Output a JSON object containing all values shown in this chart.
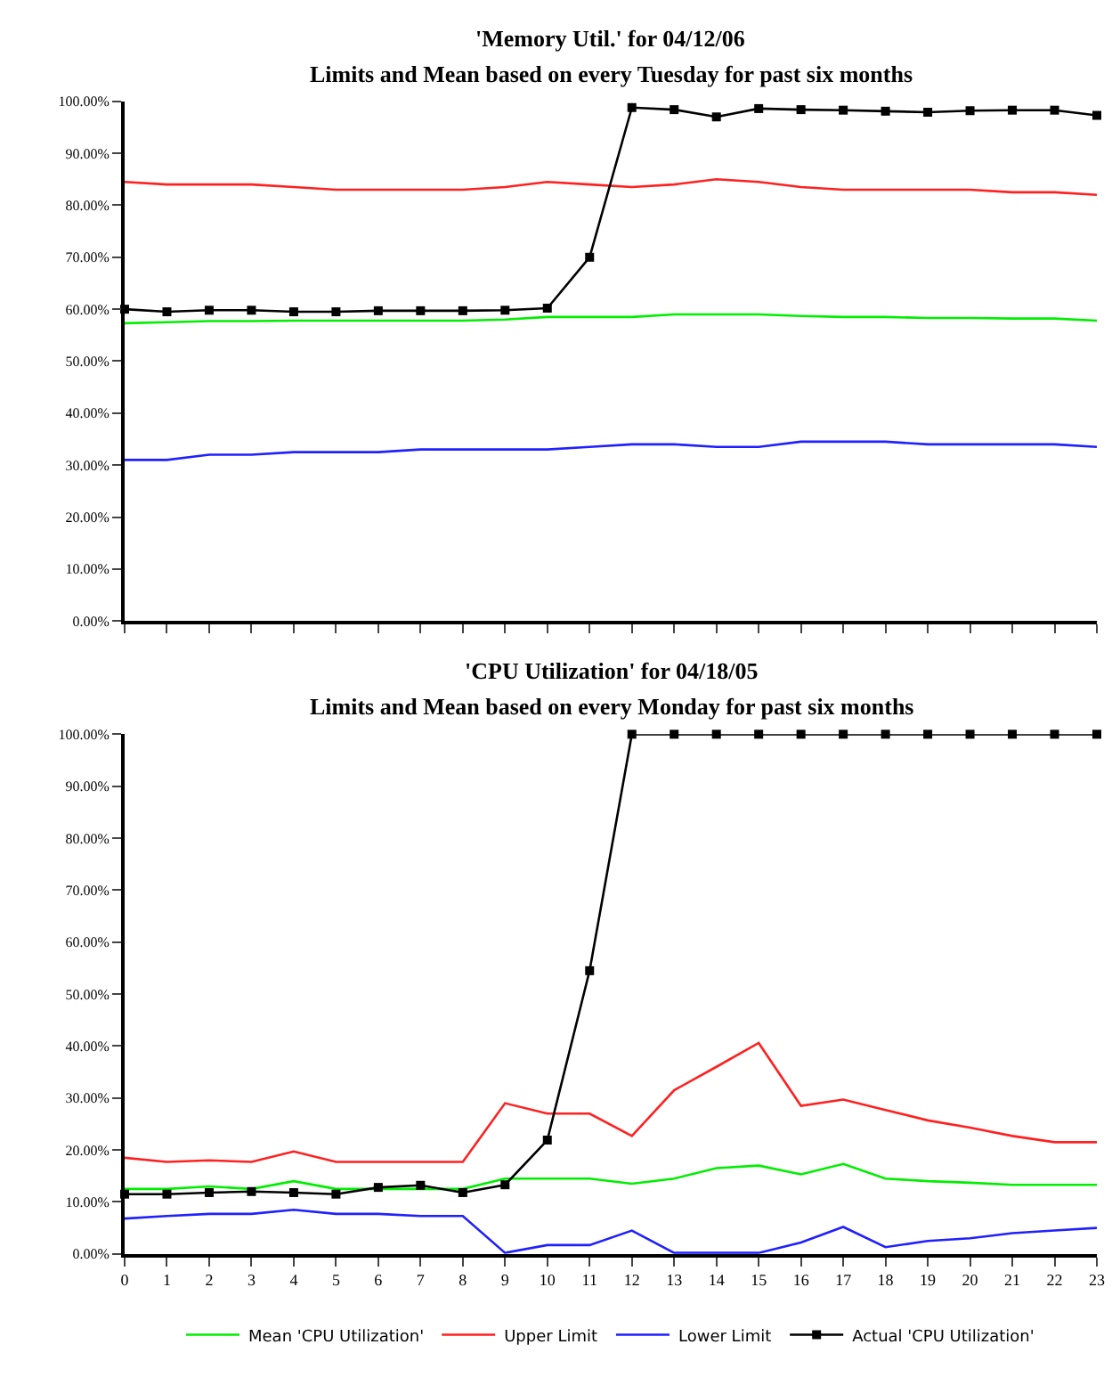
{
  "chart_data": [
    {
      "type": "line",
      "title": "'Memory Util.' for 04/12/06",
      "subtitle": "Limits and Mean based on every Tuesday for past six months",
      "x": [
        0,
        1,
        2,
        3,
        4,
        5,
        6,
        7,
        8,
        9,
        10,
        11,
        12,
        13,
        14,
        15,
        16,
        17,
        18,
        19,
        20,
        21,
        22,
        23
      ],
      "xlim": [
        0,
        23
      ],
      "xticks": [
        {
          "value": 0,
          "label": null
        },
        {
          "value": 1,
          "label": null
        },
        {
          "value": 2,
          "label": null
        },
        {
          "value": 3,
          "label": null
        },
        {
          "value": 4,
          "label": null
        },
        {
          "value": 5,
          "label": null
        },
        {
          "value": 6,
          "label": null
        },
        {
          "value": 7,
          "label": null
        },
        {
          "value": 8,
          "label": null
        },
        {
          "value": 9,
          "label": null
        },
        {
          "value": 10,
          "label": null
        },
        {
          "value": 11,
          "label": null
        },
        {
          "value": 12,
          "label": null
        },
        {
          "value": 13,
          "label": null
        },
        {
          "value": 14,
          "label": null
        },
        {
          "value": 15,
          "label": null
        },
        {
          "value": 16,
          "label": null
        },
        {
          "value": 17,
          "label": null
        },
        {
          "value": 18,
          "label": null
        },
        {
          "value": 19,
          "label": null
        },
        {
          "value": 20,
          "label": null
        },
        {
          "value": 21,
          "label": null
        },
        {
          "value": 22,
          "label": null
        },
        {
          "value": 23,
          "label": null
        }
      ],
      "ylim": [
        0,
        100
      ],
      "yticks": [
        {
          "value": 0,
          "label": "0.00%"
        },
        {
          "value": 10,
          "label": "10.00%"
        },
        {
          "value": 20,
          "label": "20.00%"
        },
        {
          "value": 30,
          "label": "30.00%"
        },
        {
          "value": 40,
          "label": "40.00%"
        },
        {
          "value": 50,
          "label": "50.00%"
        },
        {
          "value": 60,
          "label": "60.00%"
        },
        {
          "value": 70,
          "label": "70.00%"
        },
        {
          "value": 80,
          "label": "80.00%"
        },
        {
          "value": 90,
          "label": "90.00%"
        },
        {
          "value": 100,
          "label": "100.00%"
        }
      ],
      "tick_labels": "y",
      "legend": false,
      "series": [
        {
          "color": "#00ee00",
          "marker": "none",
          "values": [
            57.3,
            57.5,
            57.7,
            57.7,
            57.8,
            57.8,
            57.8,
            57.8,
            57.8,
            58,
            58.5,
            58.5,
            58.5,
            59,
            59,
            59,
            58.7,
            58.5,
            58.5,
            58.3,
            58.3,
            58.2,
            58.2,
            57.8
          ]
        },
        {
          "color": "#ff2020",
          "marker": "none",
          "values": [
            84.5,
            84,
            84,
            84,
            83.5,
            83,
            83,
            83,
            83,
            83.5,
            84.5,
            84,
            83.5,
            84,
            85,
            84.5,
            83.5,
            83,
            83,
            83,
            83,
            82.5,
            82.5,
            82
          ]
        },
        {
          "color": "#2020ff",
          "marker": "none",
          "values": [
            31,
            31,
            32,
            32,
            32.5,
            32.5,
            32.5,
            33,
            33,
            33,
            33,
            33.5,
            34,
            34,
            33.5,
            33.5,
            34.5,
            34.5,
            34.5,
            34,
            34,
            34,
            34,
            33.5
          ]
        },
        {
          "color": "#000000",
          "marker": "square",
          "values": [
            60,
            59.5,
            59.8,
            59.8,
            59.5,
            59.5,
            59.7,
            59.7,
            59.7,
            59.8,
            60.2,
            70,
            98.8,
            98.4,
            97,
            98.6,
            98.4,
            98.3,
            98.1,
            97.9,
            98.2,
            98.3,
            98.3,
            97.3
          ]
        }
      ]
    },
    {
      "type": "line",
      "title": "'CPU Utilization' for 04/18/05",
      "subtitle": "Limits and Mean based on every Monday for past six months",
      "x": [
        0,
        1,
        2,
        3,
        4,
        5,
        6,
        7,
        8,
        9,
        10,
        11,
        12,
        13,
        14,
        15,
        16,
        17,
        18,
        19,
        20,
        21,
        22,
        23
      ],
      "xlim": [
        0,
        23
      ],
      "xticks": [
        0,
        1,
        2,
        3,
        4,
        5,
        6,
        7,
        8,
        9,
        10,
        11,
        12,
        13,
        14,
        15,
        16,
        17,
        18,
        19,
        20,
        21,
        22,
        23
      ],
      "ylim": [
        0,
        100
      ],
      "yticks": [
        {
          "value": 0,
          "label": "0.00%"
        },
        {
          "value": 10,
          "label": "10.00%"
        },
        {
          "value": 20,
          "label": "20.00%"
        },
        {
          "value": 30,
          "label": "30.00%"
        },
        {
          "value": 40,
          "label": "40.00%"
        },
        {
          "value": 50,
          "label": "50.00%"
        },
        {
          "value": 60,
          "label": "60.00%"
        },
        {
          "value": 70,
          "label": "70.00%"
        },
        {
          "value": 80,
          "label": "80.00%"
        },
        {
          "value": 90,
          "label": "90.00%"
        },
        {
          "value": 100,
          "label": "100.00%"
        }
      ],
      "legend": "bottom",
      "series": [
        {
          "name": "Mean 'CPU Utilization'",
          "color": "#00ee00",
          "marker": "none",
          "values": [
            12.5,
            12.5,
            13,
            12.5,
            14,
            12.5,
            12.5,
            12.5,
            12.5,
            14.5,
            14.5,
            14.5,
            13.5,
            14.5,
            16.5,
            17,
            15.3,
            17.3,
            14.5,
            14,
            13.7,
            13.3,
            13.3,
            13.3
          ]
        },
        {
          "name": "Upper Limit",
          "color": "#ff2020",
          "marker": "none",
          "values": [
            18.5,
            17.7,
            18,
            17.7,
            19.7,
            17.7,
            17.7,
            17.7,
            17.7,
            29,
            27,
            27,
            22.7,
            31.5,
            36,
            40.6,
            28.5,
            29.7,
            27.7,
            25.7,
            24.3,
            22.7,
            21.5,
            21.5
          ]
        },
        {
          "name": "Lower Limit",
          "color": "#2020ff",
          "marker": "none",
          "values": [
            6.8,
            7.3,
            7.7,
            7.7,
            8.5,
            7.7,
            7.7,
            7.3,
            7.3,
            0.2,
            1.7,
            1.7,
            4.5,
            0.2,
            0.2,
            0.2,
            2.2,
            5.2,
            1.3,
            2.5,
            3,
            4,
            4.5,
            5
          ]
        },
        {
          "name": "Actual 'CPU Utilization'",
          "color": "#000000",
          "marker": "square",
          "values": [
            11.5,
            11.5,
            11.8,
            12,
            11.8,
            11.5,
            12.8,
            13.2,
            11.8,
            13.3,
            21.9,
            54.5,
            100,
            100,
            100,
            100,
            100,
            100,
            100,
            100,
            100,
            100,
            100,
            100
          ]
        }
      ]
    }
  ]
}
